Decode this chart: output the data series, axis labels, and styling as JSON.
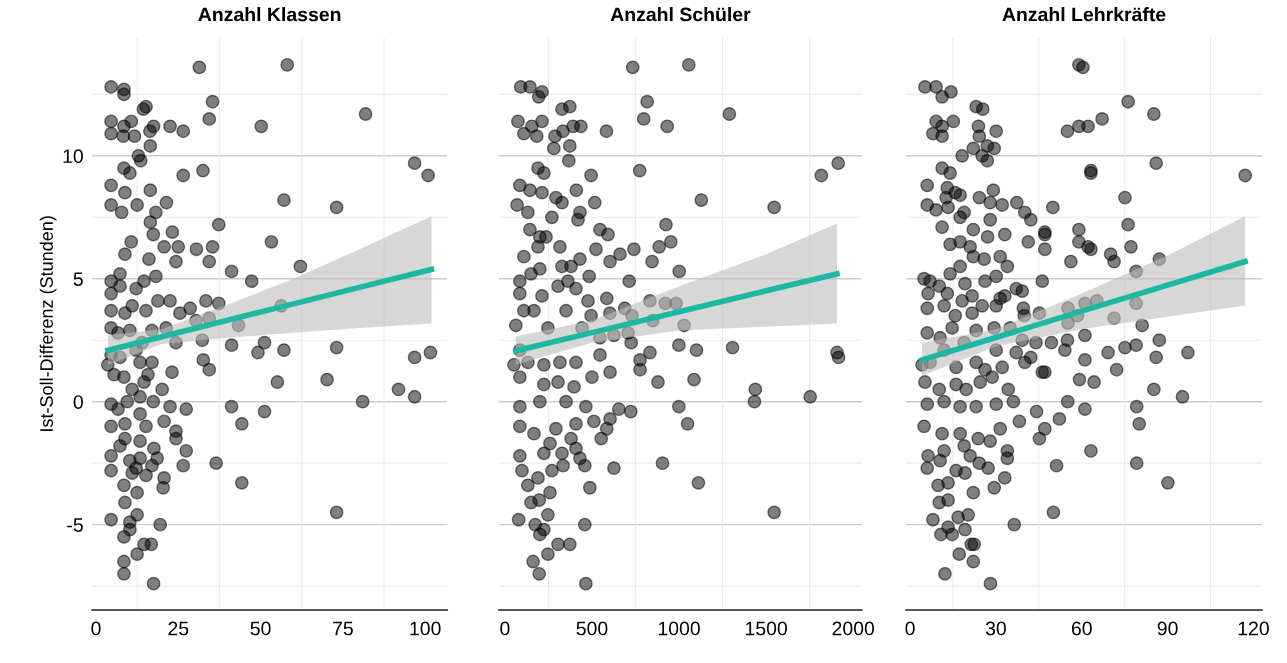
{
  "chart_data": [
    {
      "type": "scatter",
      "title": "Anzahl Klassen",
      "ylabel": "Ist-Soll-Differenz (Stunden)",
      "xlim": [
        -1.2,
        106.7
      ],
      "xticks": [
        0,
        25,
        50,
        75,
        100
      ],
      "ylim": [
        -8.47,
        14.8
      ],
      "yticks": [
        {
          "value": -5,
          "label": "-5"
        },
        0,
        5,
        10
      ],
      "grid": "y",
      "series": [
        {
          "marker": "circle",
          "color": "#000000",
          "x": [
            31.4,
            58.1,
            4.6,
            8.5,
            8.5,
            35.4,
            15.2,
            14.4,
            34.4,
            81.9,
            50.2,
            4.6,
            8.5,
            10.7,
            17.5,
            22.5,
            26.5,
            4.6,
            8.3,
            11.7,
            16.4,
            16.5,
            12.9,
            13.6,
            96.8,
            100.9,
            32.5,
            26.5,
            8.5,
            10.3,
            4.6,
            16.5,
            8.8,
            21.4,
            4.6,
            12.5,
            7.8,
            57.1,
            73.1,
            18.2,
            16.5,
            37.3,
            23.2,
            17.4,
            53.3,
            10.7,
            20.7,
            25.0,
            35.4,
            30.5,
            24.3,
            34.4,
            62.1,
            8.8,
            16.1,
            41.2,
            47.3,
            4.6,
            7.3,
            14.6,
            18.2,
            4.6,
            12.2,
            18.8,
            22.5,
            33.4,
            37.3,
            56.3,
            4.6,
            8.8,
            15.2,
            28.6,
            25.5,
            30.4,
            34.4,
            43.3,
            4.6,
            10.3,
            17.0,
            21.3,
            24.3,
            32.3,
            41.2,
            51.2,
            57.1,
            73.1,
            49.2,
            96.8,
            101.6,
            32.6,
            34.4,
            4.6,
            7.3,
            12.2,
            3.6,
            5.5,
            13.4,
            17.0,
            23.1,
            14.6,
            8.5,
            20.1,
            55.1,
            70.2,
            91.9,
            96.8,
            81.0,
            4.6,
            9.5,
            13.4,
            17.4,
            22.5,
            27.4,
            41.2,
            51.2,
            44.3,
            4.6,
            8.8,
            13.4,
            20.7,
            24.3,
            24.3,
            8.8,
            13.4,
            17.6,
            27.4,
            4.6,
            10.3,
            13.4,
            18.6,
            4.6,
            12.2,
            17.0,
            26.5,
            36.5,
            20.7,
            20.4,
            8.5,
            11.0,
            44.3,
            8.8,
            12.5,
            4.6,
            12.5,
            10.3,
            19.5,
            73.1,
            8.5,
            10.3,
            14.6,
            16.8,
            12.5,
            8.5,
            8.5,
            17.5,
            7.3,
            11.0,
            14.0,
            6.7,
            15.8,
            11.0,
            6.7,
            15.2,
            7.3,
            15.2
          ],
          "values": [
            13.6,
            13.7,
            12.8,
            12.7,
            12.5,
            12.2,
            12.0,
            11.9,
            11.5,
            11.7,
            11.2,
            11.4,
            11.2,
            11.4,
            11.2,
            11.2,
            11.0,
            10.9,
            10.8,
            10.8,
            11.0,
            10.4,
            10.0,
            9.8,
            9.7,
            9.2,
            9.4,
            9.2,
            9.5,
            9.3,
            8.8,
            8.6,
            8.5,
            8.1,
            8.0,
            8.0,
            7.7,
            8.2,
            7.9,
            7.7,
            7.3,
            7.2,
            6.9,
            6.8,
            6.5,
            6.5,
            6.3,
            6.3,
            6.3,
            6.2,
            5.7,
            5.7,
            5.5,
            6.0,
            5.8,
            5.3,
            4.9,
            4.9,
            5.2,
            4.9,
            5.1,
            4.4,
            4.6,
            4.1,
            4.1,
            4.1,
            4.0,
            3.9,
            3.7,
            3.6,
            3.7,
            3.8,
            3.6,
            3.3,
            3.4,
            3.1,
            3.0,
            2.9,
            2.9,
            3.0,
            2.4,
            2.5,
            2.3,
            2.4,
            2.1,
            2.2,
            2.0,
            1.8,
            2.0,
            1.7,
            1.3,
            1.9,
            1.8,
            2.1,
            1.5,
            1.1,
            1.6,
            1.6,
            1.2,
            0.8,
            1.0,
            0.5,
            0.8,
            0.9,
            0.5,
            0.2,
            0.0,
            -0.1,
            0.0,
            0.2,
            0.0,
            -0.2,
            -0.3,
            -0.2,
            -0.4,
            -0.9,
            -1.0,
            -0.9,
            -0.5,
            -0.8,
            -1.2,
            -1.5,
            -1.5,
            -1.6,
            -1.9,
            -2.0,
            -2.2,
            -2.4,
            -2.3,
            -2.3,
            -2.8,
            -2.7,
            -2.6,
            -2.6,
            -2.5,
            -3.1,
            -3.5,
            -3.4,
            -2.9,
            -3.3,
            -4.1,
            -3.7,
            -4.8,
            -4.6,
            -4.9,
            -5.0,
            -4.5,
            -5.5,
            -5.2,
            -5.8,
            -5.8,
            -6.2,
            -6.5,
            -7.0,
            -7.4,
            4.7,
            3.9,
            2.4,
            2.8,
            1.1,
            0.5,
            -0.3,
            -1.0,
            -1.8,
            -3.0
          ]
        },
        {
          "type": "line",
          "marker": "none",
          "color": "#1cb8a4",
          "x": [
            3.65,
            20,
            40,
            60,
            80,
            101.9
          ],
          "values": [
            2.09,
            2.64,
            3.31,
            3.98,
            4.65,
            5.38
          ],
          "lower": [
            1.5,
            2.35,
            2.6,
            2.8,
            3.0,
            3.18
          ],
          "upper": [
            2.7,
            2.95,
            3.95,
            5.0,
            6.2,
            7.54
          ]
        }
      ]
    },
    {
      "type": "scatter",
      "title": "Anzahl Schüler",
      "xlim": [
        -34,
        2050
      ],
      "xticks": [
        0,
        500,
        1000,
        1500,
        2000
      ],
      "ylim": [
        -8.47,
        14.8
      ],
      "yticks": [
        -5,
        0,
        5,
        10
      ],
      "tick_labels": "x",
      "grid": "y",
      "series": [
        {
          "marker": "circle",
          "color": "#000000",
          "x": [
            734,
            1056,
            91,
            144,
            213,
            194,
            817,
            328,
            373,
            797,
            932,
            1289,
            75,
            155,
            213,
            109,
            183,
            288,
            392,
            436,
            583,
            334,
            373,
            281,
            367,
            1914,
            1817,
            774,
            495,
            190,
            224,
            86,
            144,
            213,
            410,
            1128,
            1546,
            516,
            70,
            132,
            293,
            328,
            270,
            420,
            431,
            925,
            546,
            592,
            953,
            144,
            201,
            236,
            886,
            741,
            661,
            523,
            316,
            109,
            190,
            604,
            845,
            1001,
            328,
            380,
            431,
            484,
            714,
            86,
            150,
            201,
            362,
            86,
            213,
            305,
            408,
            477,
            585,
            833,
            921,
            983,
            688,
            603,
            495,
            109,
            167,
            351,
            63,
            1029,
            849,
            730,
            247,
            443,
            546,
            626,
            707,
            725,
            999,
            1100,
            1307,
            1907,
            1916,
            833,
            776,
            776,
            604,
            546,
            86,
            52,
            132,
            224,
            316,
            408,
            500,
            879,
            1086,
            1438,
            1433,
            1753,
            999,
            723,
            654,
            1049,
            86,
            224,
            305,
            397,
            86,
            201,
            351,
            465,
            511,
            604,
            585,
            553,
            86,
            167,
            293,
            408,
            380,
            408,
            86,
            224,
            328,
            259,
            431,
            459,
            626,
            905,
            98,
            190,
            270,
            334,
            488,
            1111,
            132,
            259,
            150,
            197,
            1546,
            79,
            247,
            459,
            174,
            201,
            224,
            305,
            373,
            247,
            162,
            197,
            465
          ],
          "values": [
            13.6,
            13.7,
            12.8,
            12.8,
            12.6,
            12.4,
            12.2,
            11.9,
            12.0,
            11.5,
            11.2,
            11.7,
            11.4,
            11.2,
            11.4,
            10.9,
            10.8,
            10.8,
            11.2,
            11.2,
            11.0,
            11.0,
            10.4,
            10.3,
            9.8,
            9.7,
            9.2,
            9.4,
            9.2,
            9.5,
            9.3,
            8.8,
            8.6,
            8.5,
            8.6,
            8.2,
            7.9,
            8.1,
            8.0,
            7.7,
            8.3,
            8.1,
            7.5,
            7.4,
            7.7,
            7.2,
            7.0,
            6.8,
            6.5,
            7.0,
            6.7,
            6.7,
            6.3,
            6.2,
            6.0,
            6.2,
            6.3,
            5.9,
            6.3,
            5.7,
            5.7,
            5.3,
            5.5,
            5.5,
            5.8,
            5.1,
            4.9,
            4.9,
            5.2,
            5.4,
            4.9,
            4.4,
            4.3,
            4.7,
            4.6,
            4.1,
            4.2,
            4.1,
            4.0,
            4.0,
            3.8,
            3.6,
            3.5,
            3.7,
            3.7,
            3.7,
            3.1,
            3.1,
            3.3,
            3.5,
            3.0,
            3.0,
            2.6,
            2.7,
            2.8,
            2.4,
            2.3,
            2.1,
            2.2,
            2.0,
            1.8,
            2.0,
            1.7,
            1.3,
            1.2,
            1.9,
            2.1,
            1.5,
            1.6,
            1.5,
            1.6,
            1.6,
            1.0,
            0.8,
            0.9,
            0.5,
            0.0,
            0.2,
            -0.2,
            -0.4,
            -0.3,
            -0.9,
            1.0,
            0.7,
            0.8,
            0.6,
            -0.2,
            0.0,
            0.0,
            -0.2,
            -0.8,
            -0.7,
            -1.1,
            -1.5,
            -1.0,
            -1.3,
            -1.1,
            -0.9,
            -1.5,
            -1.9,
            -2.2,
            -2.1,
            -2.1,
            -1.7,
            -2.3,
            -2.6,
            -2.7,
            -2.5,
            -2.8,
            -3.1,
            -2.8,
            -2.6,
            -3.5,
            -3.3,
            -3.4,
            -3.7,
            -4.1,
            -4.0,
            -4.5,
            -4.8,
            -4.6,
            -5.0,
            -5.0,
            -5.4,
            -5.2,
            -5.8,
            -5.8,
            -6.2,
            -6.5,
            -7.0,
            -7.4
          ]
        },
        {
          "type": "line",
          "marker": "none",
          "color": "#1cb8a4",
          "x": [
            63,
            500,
            1000,
            1500,
            1907
          ],
          "values": [
            2.07,
            2.81,
            3.66,
            4.51,
            5.2
          ],
          "lower": [
            1.5,
            2.4,
            2.9,
            3.05,
            3.18
          ],
          "upper": [
            2.65,
            3.3,
            4.7,
            6.0,
            7.25
          ]
        }
      ]
    },
    {
      "type": "scatter",
      "title": "Anzahl Lehrkräfte",
      "xlim": [
        -1.4,
        123
      ],
      "xticks": [
        0,
        30,
        60,
        90,
        120
      ],
      "ylim": [
        -8.47,
        14.8
      ],
      "yticks": [
        -5,
        0,
        5,
        10
      ],
      "tick_labels": "x",
      "grid": "y",
      "series": [
        {
          "marker": "circle",
          "color": "#000000",
          "x": [
            59.0,
            60.4,
            5.2,
            9.1,
            11.2,
            14.3,
            23.1,
            25.4,
            76.2,
            85.2,
            9.1,
            11.2,
            15.1,
            8.0,
            11.2,
            23.9,
            30.1,
            24.2,
            27.0,
            29.4,
            22.1,
            18.2,
            25.2,
            27.0,
            55.0,
            59.0,
            62.2,
            67.1,
            86.0,
            117.1,
            11.2,
            14.0,
            63.2,
            63.2,
            6.0,
            13.0,
            15.8,
            17.5,
            29.1,
            6.0,
            9.1,
            12.6,
            13.3,
            24.2,
            28.0,
            32.2,
            37.3,
            40.1,
            42.2,
            49.9,
            75.1,
            76.2,
            18.9,
            17.5,
            11.2,
            22.1,
            28.0,
            27.1,
            33.1,
            41.3,
            47.1,
            47.1,
            47.1,
            59.0,
            59.0,
            62.2,
            63.2,
            77.2,
            70.1,
            71.3,
            87.1,
            56.2,
            79.0,
            14.0,
            17.5,
            21.0,
            25.9,
            31.5,
            34.0,
            22.1,
            17.5,
            14.0,
            30.1,
            46.2,
            4.9,
            7.0,
            10.2,
            19.2,
            26.2,
            37.1,
            39.2,
            6.3,
            13.0,
            21.7,
            31.5,
            33.1,
            30.1,
            18.2,
            25.2,
            6.0,
            11.9,
            15.8,
            21.7,
            39.6,
            39.9,
            45.2,
            55.2,
            61.1,
            65.3,
            79.0,
            71.3,
            58.5,
            55.2,
            81.1,
            29.4,
            35.0,
            6.0,
            10.5,
            14.7,
            23.1,
            18.9,
            39.2,
            44.0,
            49.4,
            55.0,
            61.1,
            87.1,
            75.1,
            79.0,
            69.2,
            86.0,
            97.1,
            54.1,
            61.1,
            72.2,
            4.2,
            7.0,
            11.9,
            16.1,
            23.1,
            26.2,
            30.1,
            32.2,
            37.1,
            40.1,
            42.2,
            46.2,
            47.1,
            59.2,
            64.3,
            85.2,
            95.2,
            5.2,
            10.2,
            16.1,
            19.6,
            24.5,
            28.7,
            34.3,
            36.1,
            6.0,
            11.9,
            17.5,
            23.1,
            30.1,
            44.2,
            55.1,
            61.1,
            79.2,
            52.2,
            80.1,
            38.2,
            31.5,
            47.1,
            45.2,
            4.9,
            11.2,
            17.5,
            23.8,
            28.0,
            11.9,
            18.9,
            34.0,
            63.2,
            6.3,
            21.0,
            34.0,
            24.2,
            51.2,
            79.2,
            6.0,
            10.5,
            16.1,
            19.2,
            27.3,
            33.1,
            29.4,
            90.1,
            9.8,
            13.3,
            22.1,
            10.2,
            13.3,
            50.1,
            8.0,
            16.8,
            20.3,
            19.2,
            36.4,
            13.3,
            10.8,
            14.7,
            21.4,
            22.4,
            17.2,
            22.1,
            12.2,
            28.1
          ],
          "values": [
            13.7,
            13.6,
            12.8,
            12.8,
            12.4,
            12.6,
            12.0,
            11.9,
            12.2,
            11.7,
            11.4,
            11.2,
            11.4,
            10.9,
            10.8,
            11.2,
            11.0,
            10.8,
            10.4,
            10.3,
            10.3,
            10.0,
            10.0,
            9.8,
            11.0,
            11.2,
            11.2,
            11.5,
            9.7,
            9.2,
            9.5,
            9.3,
            9.4,
            9.3,
            8.8,
            8.7,
            8.5,
            8.4,
            8.6,
            8.0,
            7.8,
            8.3,
            7.9,
            8.3,
            8.1,
            8.0,
            8.1,
            7.7,
            7.4,
            7.9,
            8.3,
            7.2,
            7.7,
            7.5,
            7.1,
            7.0,
            7.4,
            6.7,
            6.8,
            6.5,
            6.9,
            6.8,
            6.2,
            7.0,
            6.5,
            6.3,
            6.2,
            6.3,
            6.0,
            5.7,
            5.8,
            5.7,
            5.3,
            6.4,
            6.5,
            6.3,
            5.8,
            5.9,
            5.5,
            5.9,
            5.5,
            5.2,
            5.1,
            4.9,
            5.0,
            4.9,
            4.7,
            4.8,
            4.9,
            4.6,
            4.5,
            4.4,
            4.4,
            4.3,
            4.2,
            4.3,
            3.9,
            4.1,
            3.9,
            3.8,
            3.9,
            3.5,
            3.6,
            3.8,
            3.5,
            3.6,
            3.8,
            4.0,
            4.1,
            4.0,
            3.4,
            3.5,
            3.2,
            3.1,
            3.0,
            3.0,
            2.8,
            2.6,
            3.0,
            2.9,
            2.4,
            2.5,
            2.4,
            2.4,
            2.5,
            2.7,
            2.5,
            2.2,
            2.3,
            2.0,
            1.8,
            2.0,
            2.1,
            1.7,
            1.3,
            1.5,
            1.6,
            2.1,
            1.4,
            1.6,
            1.3,
            2.1,
            1.4,
            2.0,
            1.6,
            1.8,
            1.2,
            1.2,
            0.9,
            0.8,
            0.5,
            0.2,
            0.8,
            0.5,
            0.7,
            0.5,
            0.8,
            1.0,
            0.5,
            0.0,
            -0.1,
            0.0,
            -0.2,
            -0.2,
            -0.1,
            -0.4,
            0.0,
            -0.3,
            -0.2,
            -0.7,
            -0.9,
            -0.8,
            -1.1,
            -1.1,
            -1.5,
            -1.0,
            -1.3,
            -1.3,
            -1.5,
            -1.6,
            -2.0,
            -1.8,
            -2.0,
            -2.0,
            -2.2,
            -2.2,
            -2.3,
            -2.5,
            -2.6,
            -2.5,
            -2.7,
            -2.4,
            -2.8,
            -2.9,
            -2.7,
            -3.1,
            -3.5,
            -3.3,
            -3.4,
            -3.3,
            -3.7,
            -4.1,
            -4.0,
            -4.5,
            -4.8,
            -4.7,
            -4.6,
            -5.2,
            -5.0,
            -5.1,
            -5.4,
            -5.4,
            -5.8,
            -5.8,
            -6.2,
            -6.5,
            -7.0,
            -7.4
          ]
        },
        {
          "type": "line",
          "marker": "none",
          "color": "#1cb8a4",
          "x": [
            4.2,
            30,
            60,
            90,
            117.1
          ],
          "values": [
            1.7,
            2.61,
            3.68,
            4.74,
            5.7
          ],
          "lower": [
            1.05,
            2.25,
            2.95,
            3.45,
            3.91
          ],
          "upper": [
            2.4,
            2.95,
            4.4,
            5.95,
            7.54
          ]
        }
      ]
    }
  ]
}
